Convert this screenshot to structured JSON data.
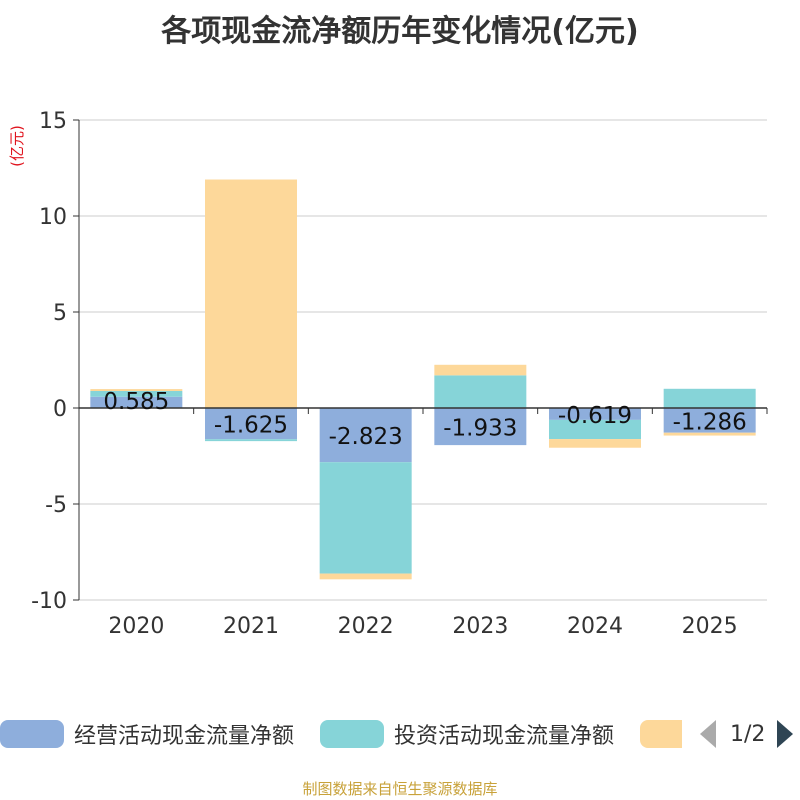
{
  "chart_data": {
    "type": "bar",
    "stacked": true,
    "title": "各项现金流净额历年变化情况(亿元)",
    "ylabel": "(亿元)",
    "xlabel": "",
    "categories": [
      "2020",
      "2021",
      "2022",
      "2023",
      "2024",
      "2025"
    ],
    "ylim": [
      -10,
      15
    ],
    "yticks": [
      15,
      10,
      5,
      0,
      -5,
      -10
    ],
    "grid": true,
    "series": [
      {
        "name": "经营活动现金流量净额",
        "color": "#8eaedc",
        "values": [
          0.585,
          -1.625,
          -2.823,
          -1.933,
          -0.619,
          -1.286
        ]
      },
      {
        "name": "投资活动现金流量净额",
        "color": "#86d4d8",
        "values": [
          0.3,
          -0.1,
          -5.8,
          1.7,
          -1.0,
          1.0
        ]
      },
      {
        "name": "",
        "color": "#fdd89a",
        "values": [
          0.1,
          11.9,
          -0.3,
          0.55,
          -0.45,
          -0.15
        ]
      }
    ],
    "data_labels": [
      "0.585",
      "-1.625",
      "-2.823",
      "-1.933",
      "-0.619",
      "-1.286"
    ],
    "legend_position": "bottom"
  },
  "legend": {
    "items": [
      {
        "label": "经营活动现金流量净额",
        "color": "#8eaedc"
      },
      {
        "label": "投资活动现金流量净额",
        "color": "#86d4d8"
      },
      {
        "label": "",
        "color": "#fdd89a"
      }
    ],
    "page": "1/2"
  },
  "footer": "制图数据来自恒生聚源数据库"
}
